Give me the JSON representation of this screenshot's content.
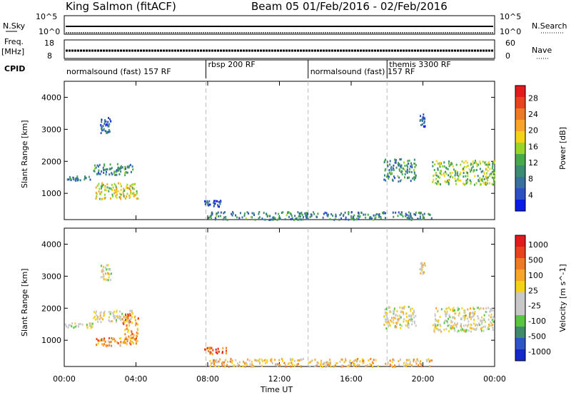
{
  "header": {
    "station": "King Salmon (fitACF)",
    "beam_date": "Beam 05   01/Feb/2016 - 02/Feb/2016"
  },
  "info_panels": {
    "nsky_label": "N.Sky",
    "nsky_ticks": [
      "10^5",
      "10^0"
    ],
    "nsearch_label": "N.Search",
    "nsearch_ticks": [
      "10^5",
      "10^0"
    ],
    "freq_label": "Freq.",
    "freq_unit": "[MHz]",
    "freq_ticks": [
      "18",
      "8"
    ],
    "nave_label": "Nave",
    "nave_ticks": [
      "60",
      "0"
    ],
    "cpid_label": "CPID",
    "cpid_segments": [
      {
        "label": "normalsound (fast) 157 RF",
        "start_h": 0,
        "end_h": 7.9
      },
      {
        "label": "rbsp 200 RF",
        "start_h": 7.9,
        "end_h": 13.6
      },
      {
        "label": "normalsound (fast) 157 RF",
        "start_h": 13.6,
        "end_h": 18.0
      },
      {
        "label": "themis 3300 RF",
        "start_h": 18.0,
        "end_h": 24
      }
    ]
  },
  "axes": {
    "xlabel": "Time UT",
    "ylabel": "Slant Range [km]",
    "x_ticks": [
      "00:00",
      "04:00",
      "08:00",
      "12:00",
      "16:00",
      "20:00",
      "00:00"
    ],
    "y_ticks": [
      "1000",
      "2000",
      "3000",
      "4000"
    ]
  },
  "chart_data": [
    {
      "type": "heatmap",
      "panel": "power",
      "x_range_hours": [
        0,
        24
      ],
      "y_range_km": [
        180,
        4500
      ],
      "colorbar_label": "Power [dB]",
      "colorbar_ticks": [
        "4",
        "8",
        "12",
        "16",
        "20",
        "24",
        "28"
      ],
      "colorbar_colors": [
        "#0a1be6",
        "#2d4fc4",
        "#38709e",
        "#3c8c73",
        "#48a94a",
        "#9ad52a",
        "#f6d11a",
        "#f8a52a",
        "#ee7a23",
        "#e5441d",
        "#e01c1c"
      ],
      "regions": [
        {
          "x": [
            0.0,
            1.6
          ],
          "y": [
            1420,
            1560
          ],
          "level": 0.25
        },
        {
          "x": [
            1.6,
            3.8
          ],
          "y": [
            1600,
            1950
          ],
          "level": 0.3
        },
        {
          "x": [
            1.7,
            4.1
          ],
          "y": [
            850,
            1350
          ],
          "level": 0.55
        },
        {
          "x": [
            2.0,
            2.6
          ],
          "y": [
            2900,
            3400
          ],
          "level": 0.2
        },
        {
          "x": [
            7.8,
            8.8
          ],
          "y": [
            600,
            800
          ],
          "level": 0.15
        },
        {
          "x": [
            8.0,
            20.5
          ],
          "y": [
            200,
            450
          ],
          "level": 0.3
        },
        {
          "x": [
            17.8,
            19.6
          ],
          "y": [
            1400,
            2100
          ],
          "level": 0.3
        },
        {
          "x": [
            20.5,
            24.0
          ],
          "y": [
            1300,
            2050
          ],
          "level": 0.45
        },
        {
          "x": [
            19.8,
            20.1
          ],
          "y": [
            3100,
            3500
          ],
          "level": 0.15
        }
      ]
    },
    {
      "type": "heatmap",
      "panel": "velocity",
      "x_range_hours": [
        0,
        24
      ],
      "y_range_km": [
        180,
        4500
      ],
      "colorbar_label": "Velocity [m s^-1]",
      "colorbar_ticks": [
        "1000",
        "500",
        "100",
        "25",
        "-25",
        "-100",
        "-500",
        "-1000"
      ],
      "colorbar_colors": [
        "#1528c8",
        "#2e55c8",
        "#3e8a6a",
        "#57c640",
        "#c8c8c8",
        "#c8c8c8",
        "#f6d11a",
        "#f6a72a",
        "#ee7a23",
        "#e5441d",
        "#e01c1c"
      ],
      "regions": [
        {
          "x": [
            0.0,
            1.6
          ],
          "y": [
            1420,
            1560
          ],
          "level": 0.45
        },
        {
          "x": [
            1.6,
            3.8
          ],
          "y": [
            1600,
            1950
          ],
          "level": 0.5
        },
        {
          "x": [
            1.7,
            3.2
          ],
          "y": [
            850,
            1100
          ],
          "level": 0.7
        },
        {
          "x": [
            3.2,
            4.1
          ],
          "y": [
            900,
            1900
          ],
          "level": 0.75
        },
        {
          "x": [
            2.0,
            2.6
          ],
          "y": [
            2900,
            3400
          ],
          "level": 0.5
        },
        {
          "x": [
            7.8,
            9.0
          ],
          "y": [
            600,
            800
          ],
          "level": 0.78
        },
        {
          "x": [
            8.0,
            20.5
          ],
          "y": [
            200,
            450
          ],
          "level": 0.62
        },
        {
          "x": [
            17.8,
            19.6
          ],
          "y": [
            1400,
            2100
          ],
          "level": 0.5
        },
        {
          "x": [
            20.5,
            24.0
          ],
          "y": [
            1300,
            2050
          ],
          "level": 0.5
        },
        {
          "x": [
            19.8,
            20.1
          ],
          "y": [
            3100,
            3500
          ],
          "level": 0.55
        }
      ]
    }
  ],
  "cpid_boundaries_h": [
    7.9,
    13.6,
    18.0
  ]
}
